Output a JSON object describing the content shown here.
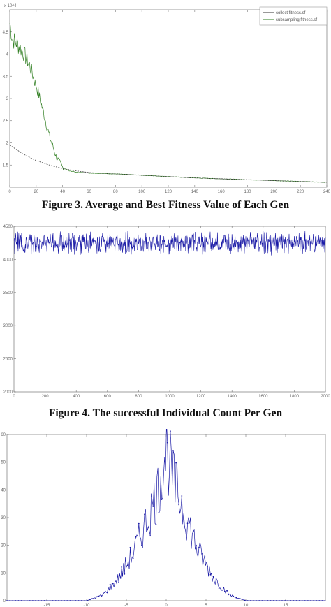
{
  "figures": [
    {
      "caption": "Figure 3. Average and Best Fitness Value of Each Gen"
    },
    {
      "caption": "Figure 4. The successful Individual Count Per Gen"
    }
  ],
  "chart_data": [
    {
      "type": "line",
      "multiplier_label": "x 10^4",
      "xlim": [
        0,
        240
      ],
      "ylim": [
        1,
        5
      ],
      "x_ticks": [
        "0",
        "20",
        "40",
        "60",
        "80",
        "100",
        "120",
        "140",
        "160",
        "180",
        "200",
        "220",
        "240"
      ],
      "y_ticks": [
        "1.5",
        "2",
        "2.5",
        "3",
        "3.5",
        "4",
        "4.5"
      ],
      "grid": false,
      "legend_position": "top-right",
      "series": [
        {
          "name": "collect fitness.sf",
          "color": "#333333",
          "x": [
            0,
            10,
            20,
            30,
            40,
            50,
            60,
            80,
            100,
            120,
            140,
            160,
            180,
            200,
            220,
            240
          ],
          "y": [
            1.95,
            1.75,
            1.6,
            1.5,
            1.42,
            1.37,
            1.33,
            1.3,
            1.27,
            1.24,
            1.21,
            1.19,
            1.17,
            1.15,
            1.13,
            1.11
          ]
        },
        {
          "name": "subsampling fitness.sf",
          "color": "#2e7d1f",
          "x": [
            0,
            2,
            5,
            10,
            15,
            20,
            25,
            30,
            35,
            40,
            45,
            50,
            60,
            80,
            100,
            120,
            140,
            160,
            180,
            200,
            220,
            240
          ],
          "y": [
            4.7,
            4.35,
            4.25,
            4.05,
            3.75,
            3.3,
            2.75,
            2.15,
            1.7,
            1.45,
            1.37,
            1.34,
            1.32,
            1.3,
            1.27,
            1.24,
            1.21,
            1.19,
            1.17,
            1.15,
            1.13,
            1.11
          ]
        }
      ]
    },
    {
      "type": "line",
      "xlim": [
        0,
        2000
      ],
      "ylim": [
        2000,
        4500
      ],
      "x_ticks": [
        "0",
        "200",
        "400",
        "600",
        "800",
        "1000",
        "1200",
        "1400",
        "1600",
        "1800",
        "2000"
      ],
      "y_ticks": [
        "2000",
        "2500",
        "3000",
        "3500",
        "4000",
        "4500"
      ],
      "grid": false,
      "series": [
        {
          "color": "#1a1aa6",
          "mean": 4250,
          "noise_amplitude": 120,
          "n_points": 2000
        }
      ]
    },
    {
      "type": "line",
      "xlim": [
        -20,
        20
      ],
      "ylim": [
        0,
        60
      ],
      "x_ticks": [
        "-15",
        "-10",
        "-5",
        "0",
        "5",
        "10",
        "15"
      ],
      "y_ticks": [
        "0",
        "10",
        "20",
        "30",
        "40",
        "50",
        "60"
      ],
      "grid": false,
      "series": [
        {
          "color": "#1a1aa6",
          "marker": "dot",
          "x": [
            -20,
            -10,
            -8,
            -6,
            -4,
            -3,
            -2,
            -1,
            0,
            1,
            2,
            3,
            4,
            6,
            8,
            10,
            20
          ],
          "y": [
            0,
            0,
            2,
            8,
            18,
            25,
            32,
            40,
            55,
            42,
            35,
            26,
            18,
            8,
            2,
            0,
            0
          ]
        }
      ]
    }
  ],
  "colors": {
    "green": "#2e7d1f",
    "blue": "#1a1aa6",
    "axis": "#888888"
  }
}
